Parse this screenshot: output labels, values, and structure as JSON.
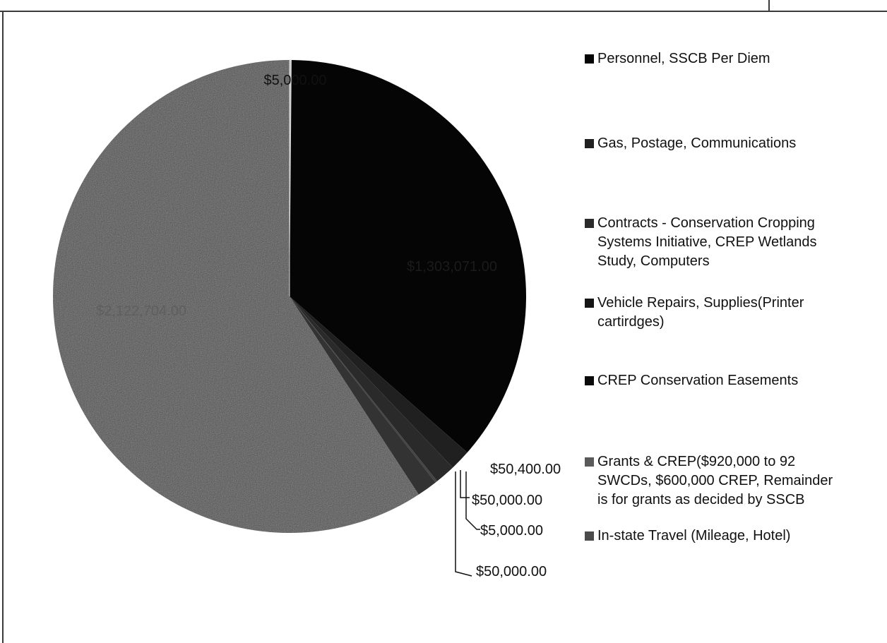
{
  "chart_data": {
    "type": "pie",
    "title": "",
    "legend_position": "right",
    "slices": [
      {
        "name": "Personnel, SSCB Per Diem",
        "value": 5000.0,
        "label": "$5,000.00",
        "color": "#cfcfcf"
      },
      {
        "name": "Gas, Postage, Communications",
        "value": 1303071.0,
        "label": "$1,303,071.00",
        "color": "#050505"
      },
      {
        "name": "Contracts - Conservation Cropping Systems Initiative, CREP Wetlands Study, Computers",
        "value": 50400.0,
        "label": "$50,400.00",
        "color": "#202020"
      },
      {
        "name": "Vehicle Repairs, Supplies(Printer cartirdges)",
        "value": 50000.0,
        "label": "$50,000.00",
        "color": "#2a2a2a"
      },
      {
        "name": "CREP Conservation Easements",
        "value": 5000.0,
        "label": "$5,000.00",
        "color": "#444444"
      },
      {
        "name": "Grants & CREP($920,000 to 92 SWCDs, $600,000 CREP, Remainder is for grants as decided by SSCB",
        "value": 50000.0,
        "label": "$50,000.00",
        "color": "#333333"
      },
      {
        "name": "In-state Travel (Mileage, Hotel)",
        "value": 2122704.0,
        "label": "$2,122,704.00",
        "color": "#4b4b4b"
      }
    ]
  },
  "legend": [
    {
      "label": "Personnel, SSCB Per Diem",
      "color": "#050505"
    },
    {
      "label": "Gas, Postage, Communications",
      "color": "#202020"
    },
    {
      "label": "Contracts - Conservation Cropping\nSystems Initiative, CREP Wetlands\nStudy, Computers",
      "color": "#2a2a2a"
    },
    {
      "label": "Vehicle Repairs, Supplies(Printer\ncartirdges)",
      "color": "#141414"
    },
    {
      "label": "CREP Conservation Easements",
      "color": "#0a0a0a"
    },
    {
      "label": "Grants & CREP($920,000 to 92\nSWCDs, $600,000 CREP, Remainder\nis for grants as decided by SSCB",
      "color": "#5a5a5a"
    },
    {
      "label": "In-state Travel (Mileage, Hotel)",
      "color": "#4b4b4b"
    }
  ]
}
